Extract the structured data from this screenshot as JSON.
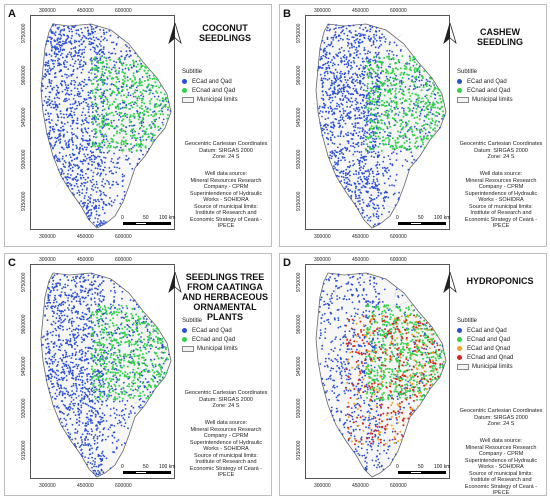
{
  "shared": {
    "xticks_top": [
      "300000",
      "450000",
      "600000"
    ],
    "xticks_bottom": [
      "300000",
      "450000",
      "600000"
    ],
    "yticks": [
      "9750000",
      "9600000",
      "9450000",
      "9300000",
      "9150000"
    ],
    "legend_title": "Subtitle",
    "municipal_label": "Municipal limits",
    "coords": [
      "Geocentric Cartesian Coordinates",
      "Datum: SIRGAS 2000",
      "Zone: 24 S"
    ],
    "source": [
      "Well data source:",
      "Mineral Resources Research",
      "Company - CPRM",
      "Superintendence of Hydraulic",
      "Works - SOHIDRA",
      "Source of municipal limits:",
      "Institute of Research and",
      "Economic Strategy of Ceará -",
      "IPECE"
    ],
    "scale_labels": [
      "0",
      "50",
      "100 km"
    ]
  },
  "colors": {
    "blue": "#2a4fd6",
    "green": "#33d14a",
    "orange": "#f0a020",
    "red": "#d8261e"
  },
  "panels": [
    {
      "letter": "A",
      "title": [
        "COCONUT",
        "SEEDLINGS"
      ],
      "legend": [
        {
          "label": "ECad and Qad",
          "color": "blue"
        },
        {
          "label": "ECnad and Qad",
          "color": "green"
        }
      ]
    },
    {
      "letter": "B",
      "title": [
        "CASHEW SEEDLING"
      ],
      "legend": [
        {
          "label": "ECad and Qad",
          "color": "blue"
        },
        {
          "label": "ECnad and Qad",
          "color": "green"
        }
      ]
    },
    {
      "letter": "C",
      "title": [
        "SEEDLINGS TREE",
        "FROM CAATINGA",
        "AND HERBACEOUS",
        "ORNAMENTAL",
        "PLANTS"
      ],
      "legend": [
        {
          "label": "ECad and Qad",
          "color": "blue"
        },
        {
          "label": "ECnad and Qad",
          "color": "green"
        }
      ]
    },
    {
      "letter": "D",
      "title": [
        "HYDROPONICS"
      ],
      "legend": [
        {
          "label": "ECad and Qad",
          "color": "blue"
        },
        {
          "label": "ECnad and Qad",
          "color": "green"
        },
        {
          "label": "ECad and Qnad",
          "color": "orange"
        },
        {
          "label": "ECnad and Qnad",
          "color": "red"
        }
      ]
    }
  ]
}
